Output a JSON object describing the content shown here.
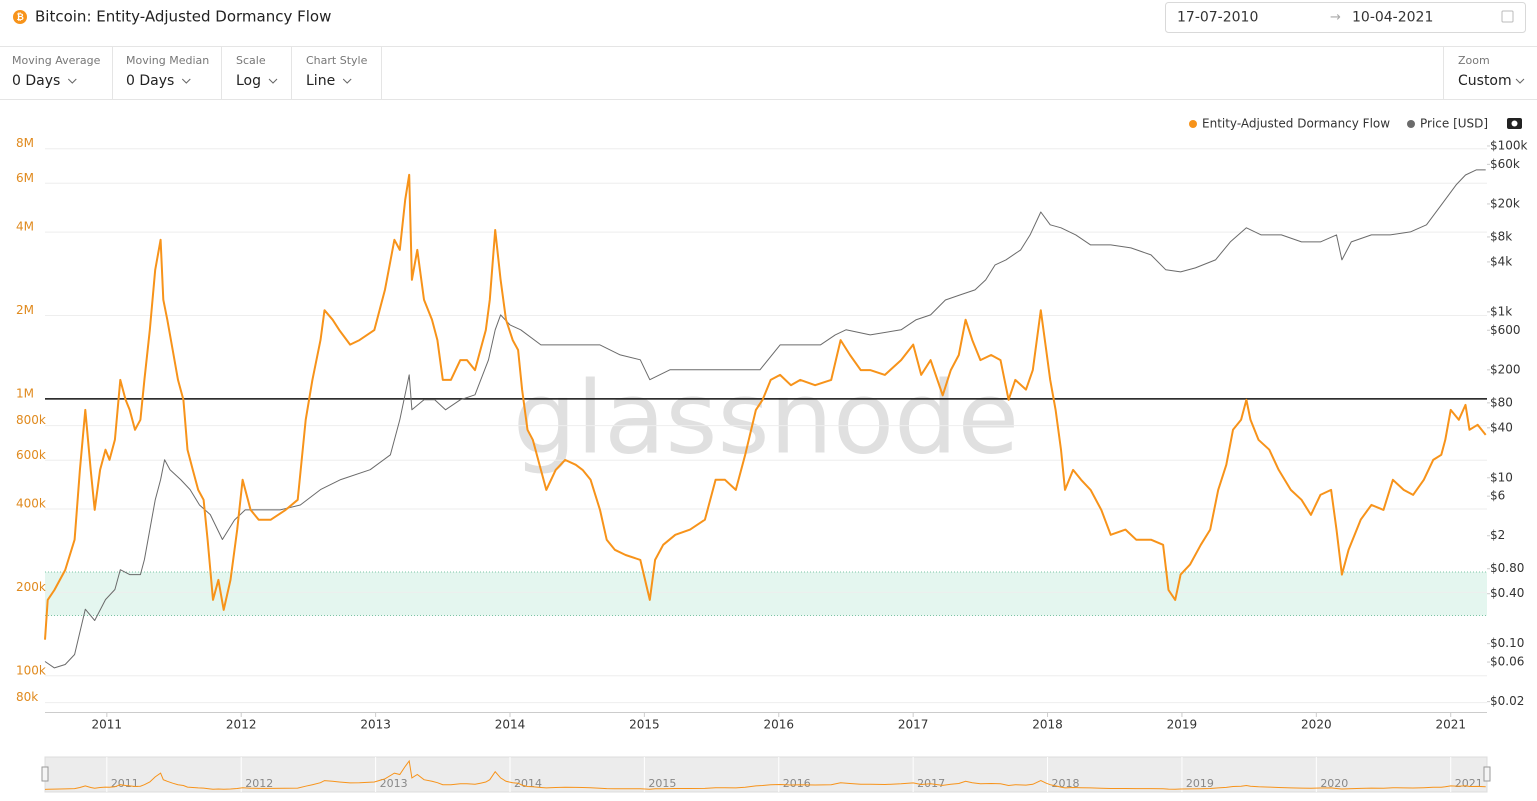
{
  "header": {
    "title": "Bitcoin: Entity-Adjusted Dormancy Flow",
    "date_from": "17-07-2010",
    "date_to": "10-04-2021"
  },
  "controls": [
    {
      "label": "Moving Average",
      "value": "0 Days"
    },
    {
      "label": "Moving Median",
      "value": "0 Days"
    },
    {
      "label": "Scale",
      "value": "Log"
    },
    {
      "label": "Chart Style",
      "value": "Line"
    }
  ],
  "zoom": {
    "label": "Zoom",
    "value": "Custom"
  },
  "chart_data": {
    "type": "line",
    "watermark": "glassnode",
    "log_scale": true,
    "grid": true,
    "legend": "top-right",
    "xlim": [
      2010.54,
      2021.27
    ],
    "xticks": [
      2011,
      2012,
      2013,
      2014,
      2015,
      2016,
      2017,
      2018,
      2019,
      2020,
      2021
    ],
    "ylim": [
      74000,
      8600000
    ],
    "yticks": [
      {
        "value": 80000,
        "label": "80k"
      },
      {
        "value": 100000,
        "label": "100k"
      },
      {
        "value": 200000,
        "label": "200k"
      },
      {
        "value": 400000,
        "label": "400k"
      },
      {
        "value": 600000,
        "label": "600k"
      },
      {
        "value": 800000,
        "label": "800k"
      },
      {
        "value": 1000000,
        "label": "1M"
      },
      {
        "value": 2000000,
        "label": "2M"
      },
      {
        "value": 4000000,
        "label": "4M"
      },
      {
        "value": 6000000,
        "label": "6M"
      },
      {
        "value": 8000000,
        "label": "8M"
      }
    ],
    "y2lim": [
      0.015,
      118000
    ],
    "y2ticks": [
      {
        "value": 0.02,
        "label": "$0.02"
      },
      {
        "value": 0.06,
        "label": "$0.06"
      },
      {
        "value": 0.1,
        "label": "$0.10"
      },
      {
        "value": 0.4,
        "label": "$0.40"
      },
      {
        "value": 0.8,
        "label": "$0.80"
      },
      {
        "value": 2,
        "label": "$2"
      },
      {
        "value": 6,
        "label": "$6"
      },
      {
        "value": 10,
        "label": "$10"
      },
      {
        "value": 40,
        "label": "$40"
      },
      {
        "value": 80,
        "label": "$80"
      },
      {
        "value": 200,
        "label": "$200"
      },
      {
        "value": 600,
        "label": "$600"
      },
      {
        "value": 1000,
        "label": "$1k"
      },
      {
        "value": 4000,
        "label": "$4k"
      },
      {
        "value": 8000,
        "label": "$8k"
      },
      {
        "value": 20000,
        "label": "$20k"
      },
      {
        "value": 60000,
        "label": "$60k"
      },
      {
        "value": 100000,
        "label": "$100k"
      }
    ],
    "reference_line": 1000000,
    "band": [
      165000,
      237000
    ],
    "series": [
      {
        "name": "Entity-Adjusted Dormancy Flow",
        "color": "#f7931a",
        "x": [
          2010.54,
          2010.56,
          2010.61,
          2010.69,
          2010.76,
          2010.8,
          2010.84,
          2010.88,
          2010.91,
          2010.95,
          2010.99,
          2011.02,
          2011.06,
          2011.1,
          2011.14,
          2011.17,
          2011.21,
          2011.25,
          2011.28,
          2011.32,
          2011.36,
          2011.4,
          2011.42,
          2011.45,
          2011.49,
          2011.53,
          2011.57,
          2011.6,
          2011.64,
          2011.68,
          2011.72,
          2011.75,
          2011.79,
          2011.83,
          2011.87,
          2011.92,
          2011.97,
          2012.01,
          2012.07,
          2012.13,
          2012.22,
          2012.33,
          2012.42,
          2012.48,
          2012.53,
          2012.59,
          2012.62,
          2012.68,
          2012.73,
          2012.81,
          2012.88,
          2012.99,
          2013.07,
          2013.14,
          2013.18,
          2013.22,
          2013.25,
          2013.27,
          2013.31,
          2013.36,
          2013.42,
          2013.46,
          2013.5,
          2013.56,
          2013.63,
          2013.68,
          2013.74,
          2013.78,
          2013.82,
          2013.85,
          2013.89,
          2013.93,
          2013.97,
          2014.02,
          2014.06,
          2014.09,
          2014.13,
          2014.17,
          2014.23,
          2014.27,
          2014.34,
          2014.41,
          2014.49,
          2014.54,
          2014.6,
          2014.67,
          2014.72,
          2014.78,
          2014.86,
          2014.97,
          2015.04,
          2015.08,
          2015.14,
          2015.23,
          2015.34,
          2015.45,
          2015.53,
          2015.6,
          2015.68,
          2015.75,
          2015.83,
          2015.88,
          2015.94,
          2016.01,
          2016.09,
          2016.16,
          2016.27,
          2016.39,
          2016.46,
          2016.53,
          2016.61,
          2016.68,
          2016.79,
          2016.91,
          2017.0,
          2017.06,
          2017.13,
          2017.22,
          2017.28,
          2017.34,
          2017.39,
          2017.44,
          2017.5,
          2017.58,
          2017.65,
          2017.71,
          2017.76,
          2017.84,
          2017.89,
          2017.95,
          2017.99,
          2018.02,
          2018.06,
          2018.1,
          2018.13,
          2018.19,
          2018.25,
          2018.32,
          2018.4,
          2018.47,
          2018.58,
          2018.66,
          2018.77,
          2018.86,
          2018.9,
          2018.95,
          2018.99,
          2019.06,
          2019.14,
          2019.21,
          2019.27,
          2019.33,
          2019.38,
          2019.44,
          2019.48,
          2019.51,
          2019.57,
          2019.65,
          2019.72,
          2019.81,
          2019.89,
          2019.96,
          2020.03,
          2020.11,
          2020.15,
          2020.19,
          2020.24,
          2020.33,
          2020.41,
          2020.5,
          2020.57,
          2020.65,
          2020.72,
          2020.8,
          2020.87,
          2020.93,
          2020.96,
          2021.0,
          2021.06,
          2021.11,
          2021.14,
          2021.2,
          2021.26
        ],
        "values": [
          135000,
          188000,
          204000,
          241000,
          310000,
          554000,
          912000,
          554000,
          397000,
          554000,
          655000,
          602000,
          711000,
          1170000,
          992000,
          912000,
          773000,
          840000,
          1170000,
          1770000,
          2920000,
          3750000,
          2280000,
          1930000,
          1500000,
          1170000,
          992000,
          655000,
          554000,
          469000,
          432000,
          310000,
          188000,
          222000,
          173000,
          222000,
          337000,
          510000,
          397000,
          366000,
          366000,
          397000,
          432000,
          840000,
          1170000,
          1630000,
          2090000,
          1930000,
          1770000,
          1570000,
          1630000,
          1770000,
          2480000,
          3750000,
          3450000,
          5230000,
          6440000,
          2690000,
          3450000,
          2280000,
          1930000,
          1630000,
          1170000,
          1170000,
          1380000,
          1380000,
          1270000,
          1500000,
          1770000,
          2280000,
          4070000,
          2690000,
          1930000,
          1630000,
          1500000,
          1080000,
          773000,
          711000,
          554000,
          469000,
          554000,
          602000,
          578000,
          554000,
          510000,
          397000,
          310000,
          285000,
          273000,
          262000,
          188000,
          262000,
          297000,
          323000,
          337000,
          366000,
          510000,
          510000,
          469000,
          628000,
          912000,
          992000,
          1170000,
          1220000,
          1120000,
          1170000,
          1120000,
          1170000,
          1630000,
          1440000,
          1270000,
          1270000,
          1220000,
          1380000,
          1570000,
          1220000,
          1380000,
          1030000,
          1270000,
          1440000,
          1930000,
          1630000,
          1380000,
          1440000,
          1380000,
          992000,
          1170000,
          1080000,
          1270000,
          2090000,
          1500000,
          1170000,
          912000,
          655000,
          469000,
          554000,
          510000,
          469000,
          397000,
          323000,
          337000,
          310000,
          310000,
          297000,
          204000,
          188000,
          232000,
          252000,
          297000,
          337000,
          469000,
          578000,
          773000,
          840000,
          992000,
          840000,
          711000,
          655000,
          554000,
          469000,
          432000,
          381000,
          450000,
          469000,
          337000,
          232000,
          285000,
          366000,
          414000,
          397000,
          510000,
          469000,
          450000,
          510000,
          602000,
          628000,
          711000,
          912000,
          840000,
          951000,
          773000,
          806000,
          741000
        ]
      },
      {
        "name": "Price [USD]",
        "color": "#6b6b6b",
        "axis": "y2",
        "x": [
          2010.54,
          2010.61,
          2010.69,
          2010.76,
          2010.84,
          2010.91,
          2010.99,
          2011.06,
          2011.1,
          2011.17,
          2011.25,
          2011.28,
          2011.36,
          2011.4,
          2011.43,
          2011.47,
          2011.55,
          2011.62,
          2011.69,
          2011.77,
          2011.86,
          2011.95,
          2012.03,
          2012.14,
          2012.29,
          2012.44,
          2012.59,
          2012.74,
          2012.96,
          2013.11,
          2013.18,
          2013.25,
          2013.27,
          2013.36,
          2013.44,
          2013.52,
          2013.63,
          2013.74,
          2013.84,
          2013.89,
          2013.93,
          2014.0,
          2014.08,
          2014.23,
          2014.37,
          2014.52,
          2014.67,
          2014.82,
          2014.97,
          2015.04,
          2015.19,
          2015.42,
          2015.64,
          2015.86,
          2016.01,
          2016.16,
          2016.31,
          2016.42,
          2016.5,
          2016.68,
          2016.91,
          2017.02,
          2017.13,
          2017.24,
          2017.35,
          2017.46,
          2017.54,
          2017.61,
          2017.69,
          2017.8,
          2017.87,
          2017.95,
          2018.02,
          2018.1,
          2018.21,
          2018.32,
          2018.47,
          2018.62,
          2018.77,
          2018.88,
          2018.99,
          2019.1,
          2019.25,
          2019.36,
          2019.48,
          2019.59,
          2019.74,
          2019.89,
          2020.03,
          2020.15,
          2020.19,
          2020.26,
          2020.41,
          2020.55,
          2020.7,
          2020.82,
          2020.93,
          2021.04,
          2021.11,
          2021.19,
          2021.26
        ],
        "values": [
          0.061,
          0.051,
          0.056,
          0.074,
          0.26,
          0.19,
          0.34,
          0.45,
          0.78,
          0.68,
          0.68,
          1.03,
          5.4,
          9.5,
          16.5,
          12.5,
          9.5,
          7.2,
          4.7,
          3.6,
          1.8,
          3.1,
          4.1,
          4.1,
          4.1,
          4.7,
          7.2,
          9.5,
          12.5,
          18.9,
          50,
          174,
          66,
          87,
          87,
          66,
          87,
          100,
          264,
          607,
          920,
          697,
          607,
          400,
          400,
          400,
          400,
          303,
          264,
          152,
          200,
          200,
          200,
          200,
          400,
          400,
          400,
          528,
          607,
          528,
          607,
          800,
          920,
          1390,
          1600,
          1840,
          2430,
          3680,
          4230,
          5580,
          8470,
          16000,
          11200,
          10300,
          8470,
          6410,
          6410,
          5900,
          4860,
          3210,
          3030,
          3390,
          4230,
          6970,
          10300,
          8470,
          8470,
          6970,
          6970,
          8470,
          4230,
          6970,
          8470,
          8470,
          9200,
          11200,
          19500,
          33900,
          44700,
          51400,
          51400
        ]
      }
    ]
  }
}
